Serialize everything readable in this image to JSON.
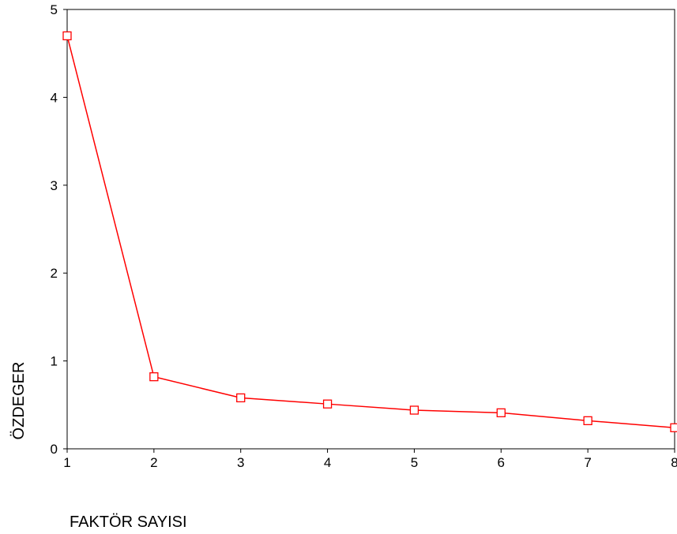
{
  "chart_data": {
    "type": "line",
    "xlabel": "FAKTÖR SAYISI",
    "ylabel": "ÖZDEGER",
    "x": [
      1,
      2,
      3,
      4,
      5,
      6,
      7,
      8
    ],
    "series": [
      {
        "values": [
          4.7,
          0.82,
          0.58,
          0.51,
          0.44,
          0.41,
          0.32,
          0.24
        ]
      }
    ],
    "xlim": [
      1,
      8
    ],
    "ylim": [
      0,
      5
    ],
    "xticks": [
      "1",
      "2",
      "3",
      "4",
      "5",
      "6",
      "7",
      "8"
    ],
    "yticks": [
      "0",
      "1",
      "2",
      "3",
      "4",
      "5"
    ],
    "grid": false,
    "line_color": "#ff0000",
    "marker": "square"
  }
}
